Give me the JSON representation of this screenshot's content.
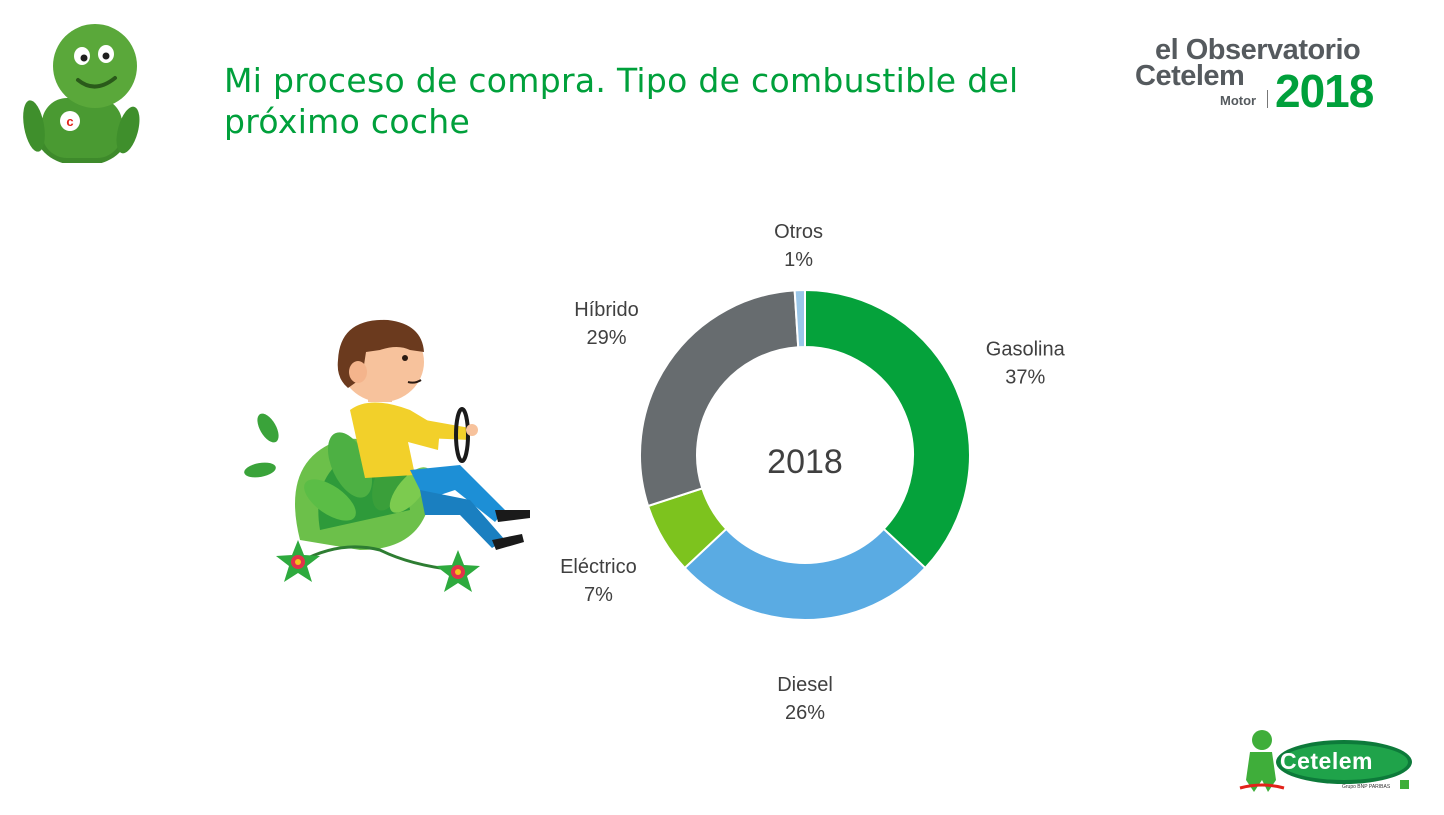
{
  "title": "Mi proceso de compra. Tipo de combustible del próximo coche",
  "brand": {
    "line1": "el Observatorio",
    "line2": "Cetelem",
    "motor": "Motor",
    "year": "2018"
  },
  "footer_logo": {
    "name": "Cetelem",
    "subtitle": "Grupo BNP PARIBAS"
  },
  "colors": {
    "title": "#00A03B",
    "brand_green": "#00A03B",
    "brand_gray": "#555a5e"
  },
  "chart_data": {
    "type": "pie",
    "variant": "donut",
    "center_label": "2018",
    "slices": [
      {
        "label": "Gasolina",
        "value": 37,
        "display": "37%",
        "color": "#05A23B"
      },
      {
        "label": "Diesel",
        "value": 26,
        "display": "26%",
        "color": "#5AABE3"
      },
      {
        "label": "Eléctrico",
        "value": 7,
        "display": "7%",
        "color": "#7DC31E"
      },
      {
        "label": "Híbrido",
        "value": 29,
        "display": "29%",
        "color": "#676C6F"
      },
      {
        "label": "Otros",
        "value": 1,
        "display": "1%",
        "color": "#9BC7E9"
      }
    ],
    "start_angle_deg": 0,
    "direction": "clockwise"
  }
}
